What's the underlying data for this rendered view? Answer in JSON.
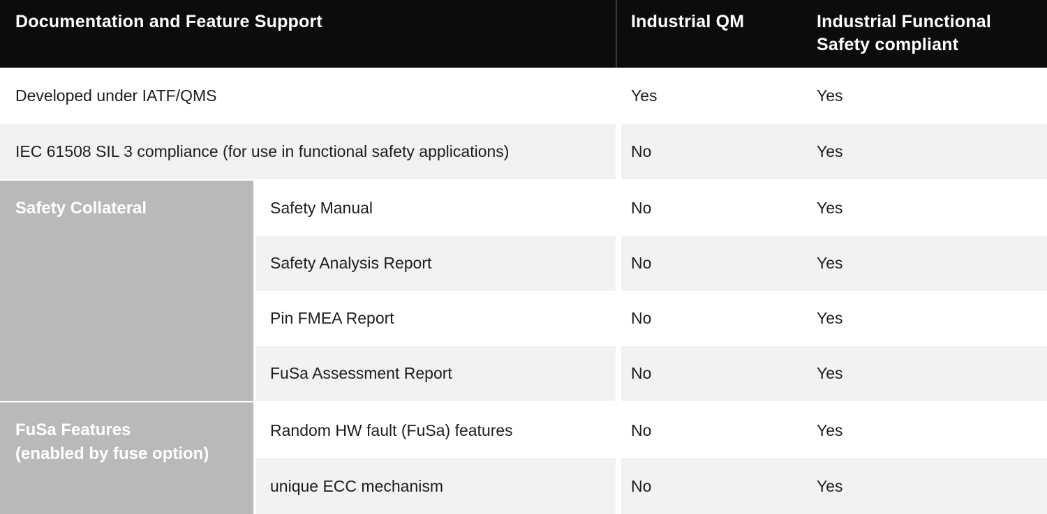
{
  "colors": {
    "header_bg": "#0c0c0c",
    "header_text": "#ffffff",
    "header_divider": "#3b3b3b",
    "row_alt_bg": "#f2f2f2",
    "row_bg": "#ffffff",
    "group_block_bg": "#b9b9b9",
    "group_text": "#ffffff",
    "body_text": "#1d1d1d"
  },
  "table": {
    "header": {
      "feature_col": "Documentation and Feature Support",
      "qm_col": "Industrial QM",
      "fusa_col": "Industrial Functional Safety compliant"
    },
    "rows": [
      {
        "label": "Developed under IATF/QMS",
        "qm": "Yes",
        "fusa": "Yes"
      },
      {
        "label": "IEC 61508 SIL 3 compliance (for use in functional safety applications)",
        "qm": "No",
        "fusa": "Yes"
      }
    ],
    "groups": [
      {
        "label_lines": [
          "Safety Collateral"
        ],
        "rows": [
          {
            "label": "Safety Manual",
            "qm": "No",
            "fusa": "Yes"
          },
          {
            "label": "Safety Analysis Report",
            "qm": "No",
            "fusa": "Yes"
          },
          {
            "label": "Pin FMEA Report",
            "qm": "No",
            "fusa": "Yes"
          },
          {
            "label": "FuSa Assessment Report",
            "qm": "No",
            "fusa": "Yes"
          }
        ]
      },
      {
        "label_lines": [
          "FuSa Features",
          "(enabled by fuse option)"
        ],
        "rows": [
          {
            "label": "Random HW fault (FuSa) features",
            "qm": "No",
            "fusa": "Yes"
          },
          {
            "label": "unique ECC mechanism",
            "qm": "No",
            "fusa": "Yes"
          }
        ]
      }
    ]
  }
}
